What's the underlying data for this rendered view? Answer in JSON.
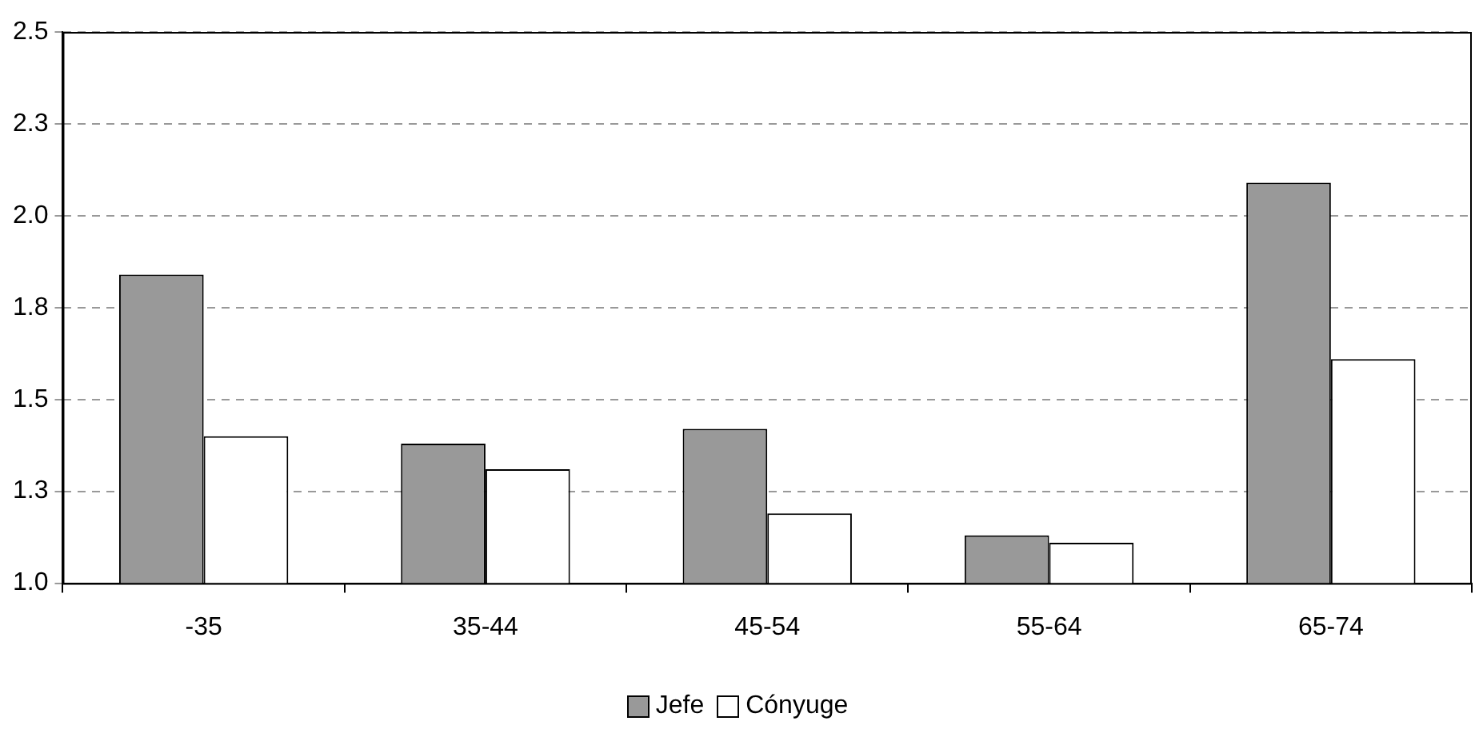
{
  "chart_data": {
    "type": "bar",
    "categories": [
      "-35",
      "35-44",
      "45-54",
      "55-64",
      "65-74"
    ],
    "series": [
      {
        "name": "Jefe",
        "color": "#999999",
        "values": [
          1.84,
          1.38,
          1.42,
          1.13,
          2.09
        ]
      },
      {
        "name": "Cónyuge",
        "color": "#ffffff",
        "values": [
          1.4,
          1.31,
          1.19,
          1.11,
          1.61
        ]
      }
    ],
    "ylim": [
      1.0,
      2.5
    ],
    "yticks": [
      {
        "value": 1.0,
        "label": "1.0"
      },
      {
        "value": 1.25,
        "label": "1.3"
      },
      {
        "value": 1.5,
        "label": "1.5"
      },
      {
        "value": 1.75,
        "label": "1.8"
      },
      {
        "value": 2.0,
        "label": "2.0"
      },
      {
        "value": 2.25,
        "label": "2.3"
      },
      {
        "value": 2.5,
        "label": "2.5"
      }
    ],
    "grid": "y",
    "legend": "bottom"
  }
}
